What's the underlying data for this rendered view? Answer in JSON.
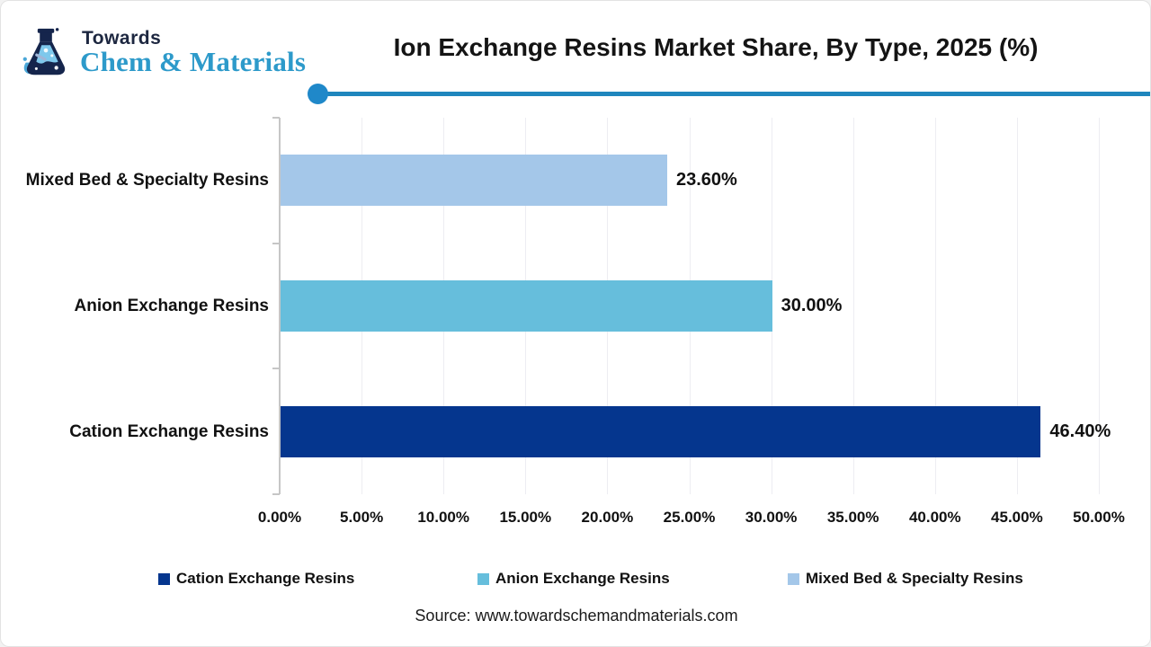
{
  "brand": {
    "line1": "Towards",
    "line2": "Chem & Materials"
  },
  "header": {
    "title": "Ion Exchange Resins Market Share, By Type, 2025 (%)"
  },
  "chart_data": {
    "type": "bar",
    "orientation": "horizontal",
    "title": "Ion Exchange Resins Market Share, By Type, 2025 (%)",
    "categories": [
      "Mixed Bed & Specialty Resins",
      "Anion Exchange Resins",
      "Cation Exchange Resins"
    ],
    "values": [
      23.6,
      30.0,
      46.4
    ],
    "value_labels": [
      "23.60%",
      "30.00%",
      "46.40%"
    ],
    "bar_colors": [
      "#A4C7E9",
      "#66BEDC",
      "#05368E"
    ],
    "xlim": [
      0,
      50
    ],
    "x_tick_step": 5,
    "x_tick_labels": [
      "0.00%",
      "5.00%",
      "10.00%",
      "15.00%",
      "20.00%",
      "25.00%",
      "30.00%",
      "35.00%",
      "40.00%",
      "45.00%",
      "50.00%"
    ],
    "grid": true,
    "legend_position": "bottom",
    "legend": [
      {
        "label": "Cation Exchange Resins",
        "color": "#05368E"
      },
      {
        "label": "Anion Exchange Resins",
        "color": "#66BEDC"
      },
      {
        "label": "Mixed Bed & Specialty Resins",
        "color": "#A4C7E9"
      }
    ]
  },
  "source": {
    "text": "Source: www.towardschemandmaterials.com"
  },
  "colors": {
    "accent_line": "#1F86BD",
    "accent_dot": "#1F88C9",
    "axis": "#C6C6C6",
    "grid": "#EDEDF2",
    "brand_navy": "#1D2740",
    "brand_blue": "#2D9ACA"
  }
}
